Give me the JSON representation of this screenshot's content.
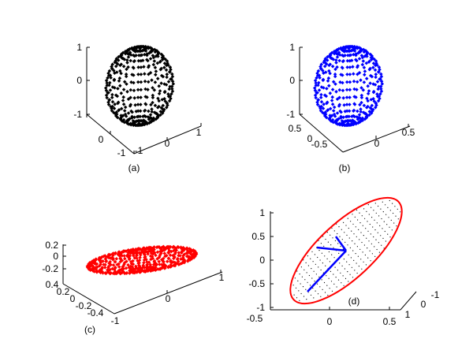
{
  "chart_data": [
    {
      "panel_label": "(a)",
      "type": "scatter",
      "dimensions": 3,
      "shape": "unit sphere point cloud",
      "marker_color": "#000000",
      "x_ticks": [
        "-1",
        "0",
        "1"
      ],
      "y_ticks": [
        "-1",
        "0",
        "1"
      ],
      "z_ticks": [
        "-1",
        "0",
        "1"
      ],
      "xlim": [
        -1,
        1
      ],
      "ylim": [
        -1,
        1
      ],
      "zlim": [
        -1,
        1
      ],
      "radii": [
        1,
        1,
        1
      ]
    },
    {
      "panel_label": "(b)",
      "type": "scatter",
      "dimensions": 3,
      "shape": "unit sphere point cloud",
      "marker_color": "#0000ff",
      "x_ticks": [
        "-0.5",
        "0",
        "0.5"
      ],
      "y_ticks": [
        "-0.5",
        "0",
        "0.5"
      ],
      "z_ticks": [
        "-1",
        "0",
        "1"
      ],
      "x_tick_vals": [
        -0.5,
        0,
        0.5
      ],
      "y_tick_vals": [
        -0.5,
        0,
        0.5
      ],
      "x_tick_pos": [
        0,
        0.5,
        1
      ],
      "y_tick_pos": [
        0,
        0.5,
        1
      ],
      "xlim": [
        -0.8,
        0.8
      ],
      "ylim": [
        -0.8,
        0.8
      ],
      "zlim": [
        -1,
        1
      ],
      "radii": [
        1,
        1,
        1
      ]
    },
    {
      "panel_label": "(c)",
      "type": "scatter",
      "dimensions": 3,
      "shape": "ellipsoid point cloud",
      "marker_color": "#ff0000",
      "x_ticks": [
        "-1",
        "0",
        "1"
      ],
      "y_ticks": [
        "-0.4",
        "-0.2",
        "0",
        "0.2",
        "0.4"
      ],
      "z_ticks": [
        "-0.2",
        "0",
        "0.2"
      ],
      "xlim": [
        -1,
        1
      ],
      "ylim": [
        -0.4,
        0.4
      ],
      "zlim": [
        -0.2,
        0.2
      ],
      "radii": [
        1,
        0.4,
        0.2
      ]
    },
    {
      "panel_label": "(d)",
      "type": "scatter",
      "dimensions": 3,
      "shape": "ellipse with interior points and principal axis vectors",
      "marker_color": "#000000",
      "ellipse_color": "#ff0000",
      "vector_color": "#0000ff",
      "x_ticks": [
        "-0.5",
        "0",
        "0.5"
      ],
      "y_ticks": [
        "1",
        "0",
        "-1"
      ],
      "z_ticks": [
        "-0.5",
        "0",
        "0.5",
        "1"
      ],
      "xlim": [
        -0.5,
        0.5
      ],
      "ylim": [
        -1,
        1
      ],
      "zlim": [
        -0.5,
        1
      ]
    }
  ]
}
